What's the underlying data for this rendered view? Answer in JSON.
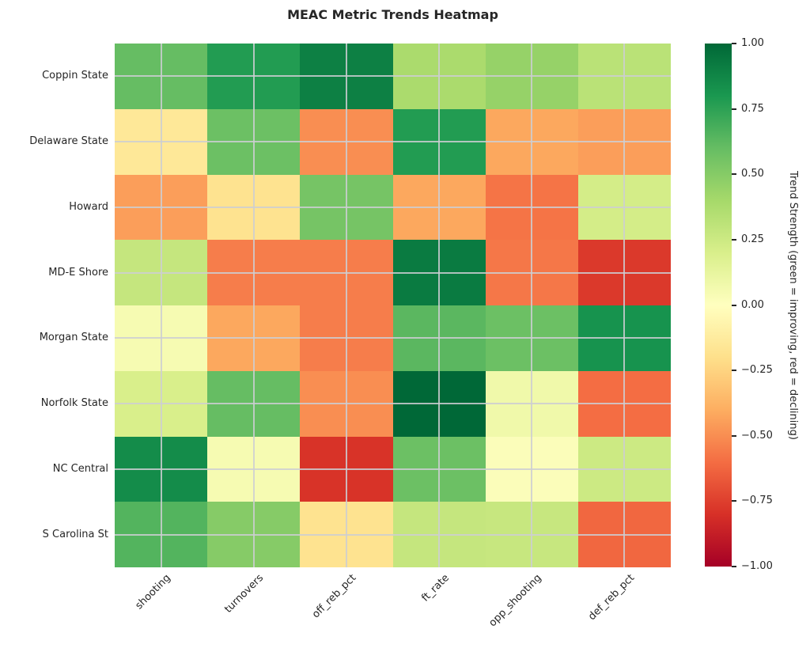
{
  "chart_data": {
    "type": "heatmap",
    "title": "MEAC Metric Trends Heatmap",
    "rows": [
      "Coppin State",
      "Delaware State",
      "Howard",
      "MD-E Shore",
      "Morgan State",
      "Norfolk State",
      "NC Central",
      "S Carolina St"
    ],
    "columns": [
      "shooting",
      "turnovers",
      "off_reb_pct",
      "ft_rate",
      "opp_shooting",
      "def_reb_pct"
    ],
    "values": [
      [
        0.6,
        0.78,
        0.9,
        0.38,
        0.45,
        0.32
      ],
      [
        -0.15,
        0.58,
        -0.5,
        0.78,
        -0.42,
        -0.45
      ],
      [
        -0.45,
        -0.18,
        0.55,
        -0.42,
        -0.58,
        0.22
      ],
      [
        0.28,
        -0.55,
        -0.55,
        0.92,
        -0.57,
        -0.77
      ],
      [
        0.05,
        -0.42,
        -0.55,
        0.63,
        0.58,
        0.82
      ],
      [
        0.2,
        0.6,
        -0.5,
        1.0,
        0.08,
        -0.6
      ],
      [
        0.85,
        0.05,
        -0.79,
        0.58,
        0.02,
        0.25
      ],
      [
        0.65,
        0.5,
        -0.18,
        0.28,
        0.27,
        -0.62
      ]
    ],
    "vmin": -1,
    "vmax": 1,
    "colormap": "RdYlGn",
    "colormap_stops": [
      "#a50026",
      "#d73027",
      "#f46d43",
      "#fdae61",
      "#fee08b",
      "#ffffbf",
      "#d9ef8b",
      "#a6d96a",
      "#66bd63",
      "#1a9850",
      "#006837"
    ],
    "grid": true,
    "grid_color": "rgba(204,206,210,0.85)",
    "text_color": "#262626",
    "background_color": "#ffffff",
    "colorbar_label": "Trend Strength (green = improving, red = declining)",
    "colorbar_ticks": [
      {
        "label": "1.00",
        "value": 1.0
      },
      {
        "label": "0.75",
        "value": 0.75
      },
      {
        "label": "0.50",
        "value": 0.5
      },
      {
        "label": "0.25",
        "value": 0.25
      },
      {
        "label": "0.00",
        "value": 0.0
      },
      {
        "label": "−0.25",
        "value": -0.25
      },
      {
        "label": "−0.50",
        "value": -0.5
      },
      {
        "label": "−0.75",
        "value": -0.75
      },
      {
        "label": "−1.00",
        "value": -1.0
      }
    ]
  }
}
